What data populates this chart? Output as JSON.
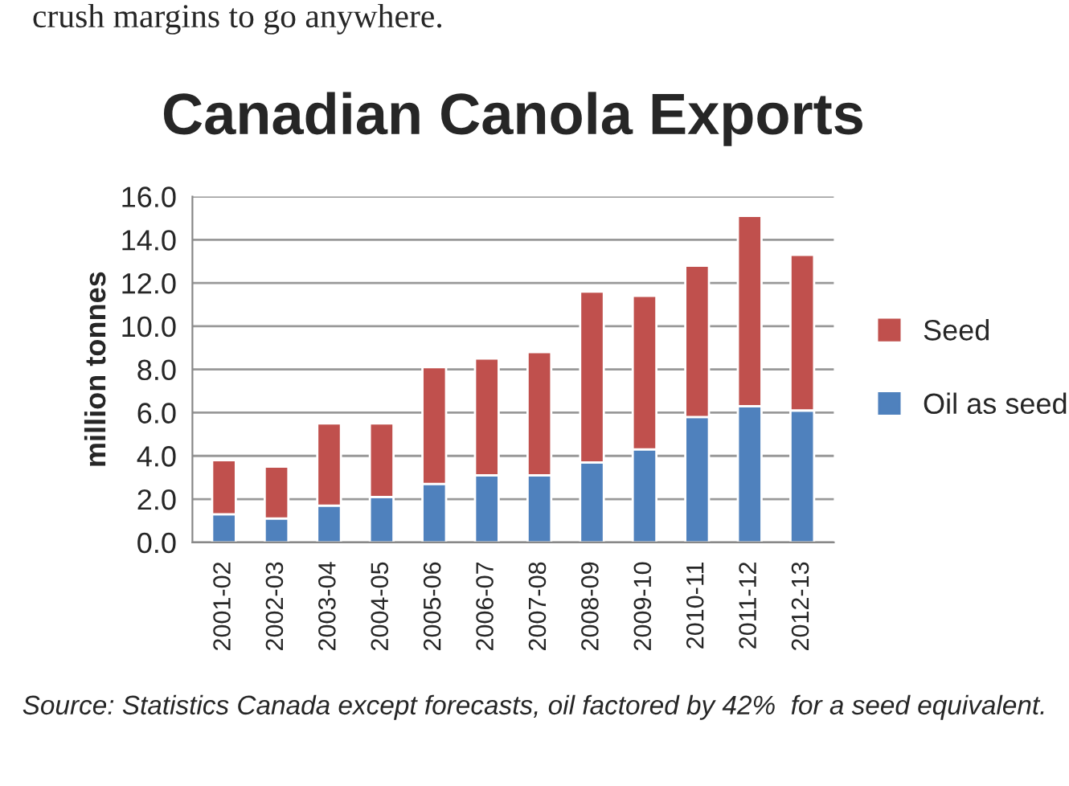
{
  "chart_data": {
    "type": "bar",
    "title": "Canadian Canola Exports",
    "ylabel": "million tonnes",
    "categories": [
      "2001-02",
      "2002-03",
      "2003-04",
      "2004-05",
      "2005-06",
      "2006-07",
      "2007-08",
      "2008-09",
      "2009-10",
      "2010-11",
      "2011-12",
      "2012-13"
    ],
    "stacked": true,
    "series": [
      {
        "name": "Oil as seed",
        "color": "#4f81bd",
        "values": [
          1.3,
          1.1,
          1.7,
          2.1,
          2.7,
          3.1,
          3.1,
          3.7,
          4.3,
          5.8,
          6.3,
          6.1
        ]
      },
      {
        "name": "Seed",
        "color": "#c0504d",
        "values": [
          2.5,
          2.4,
          3.8,
          3.4,
          5.4,
          5.4,
          5.7,
          7.9,
          7.1,
          7.0,
          8.8,
          7.2
        ]
      }
    ],
    "ylim": [
      0,
      16
    ],
    "yticks": [
      {
        "value": 0,
        "label": "0.0"
      },
      {
        "value": 2,
        "label": "2.0"
      },
      {
        "value": 4,
        "label": "4.0"
      },
      {
        "value": 6,
        "label": "6.0"
      },
      {
        "value": 8,
        "label": "8.0"
      },
      {
        "value": 10,
        "label": "10.0"
      },
      {
        "value": 12,
        "label": "12.0"
      },
      {
        "value": 14,
        "label": "14.0"
      },
      {
        "value": 16,
        "label": "16.0"
      }
    ],
    "grid": "y",
    "legend": "right",
    "annotations": [
      "crush margins to go anywhere.",
      "Source: Statistics Canada except forecasts, oil factored by 42%  for a seed equivalent."
    ]
  }
}
